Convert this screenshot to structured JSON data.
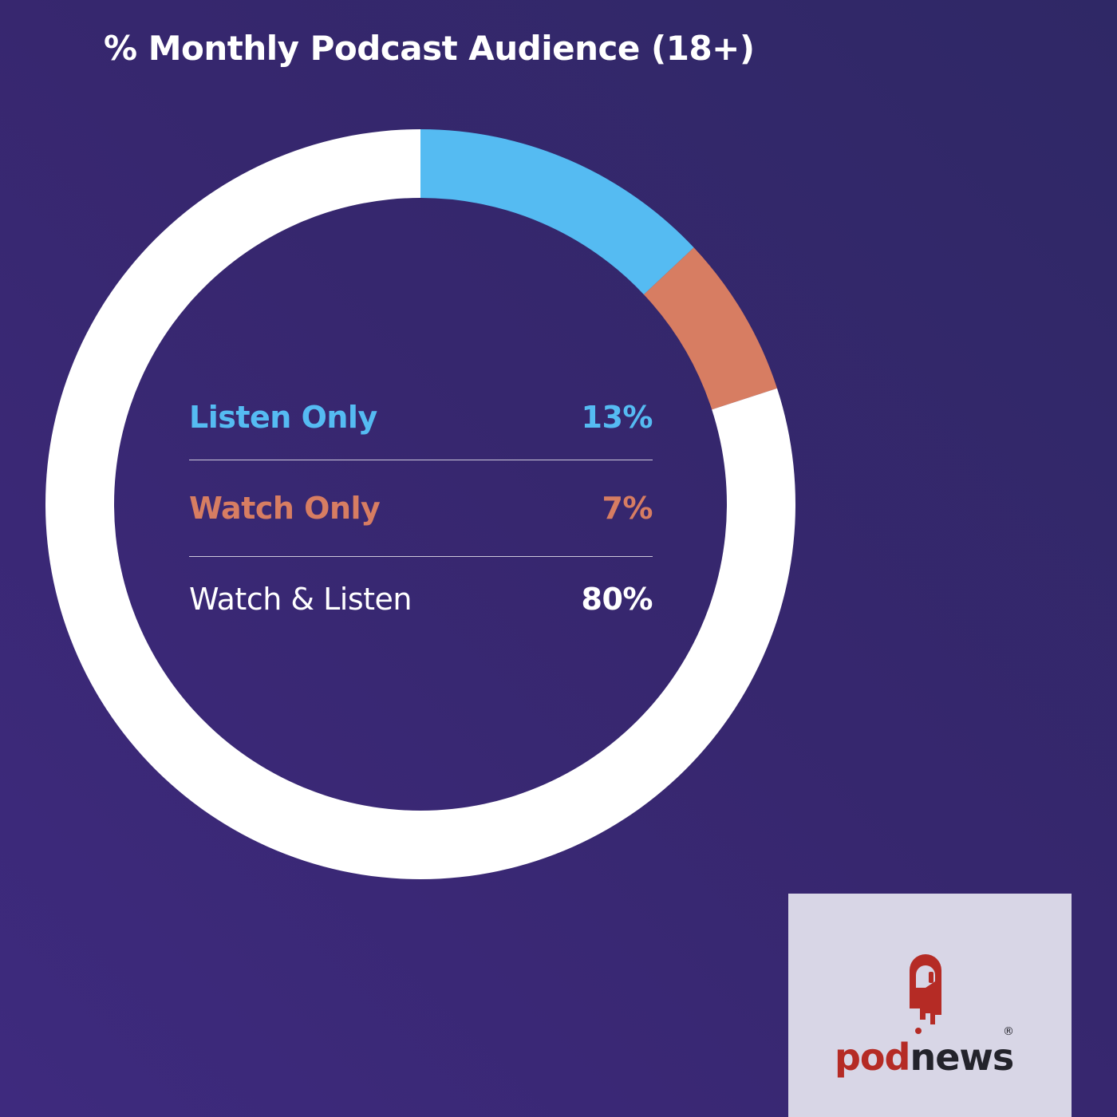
{
  "title": "% Monthly Podcast Audience (18+)",
  "legend": [
    {
      "label": "Listen Only",
      "value": "13%",
      "color": "#55bbf2"
    },
    {
      "label": "Watch Only",
      "value": "7%",
      "color": "#d77d62"
    },
    {
      "label": "Watch & Listen",
      "value": "80%",
      "color": "#ffffff"
    }
  ],
  "logo": {
    "pod": "pod",
    "news": "news",
    "reg": "®",
    "icon": "podnews-logo-icon"
  },
  "chart_data": {
    "type": "pie",
    "subtype": "donut",
    "title": "% Monthly Podcast Audience (18+)",
    "categories": [
      "Listen Only",
      "Watch Only",
      "Watch & Listen"
    ],
    "values": [
      13,
      7,
      80
    ],
    "colors": [
      "#55bbf2",
      "#d77d62",
      "#ffffff"
    ],
    "unit": "%",
    "legend_position": "center"
  }
}
